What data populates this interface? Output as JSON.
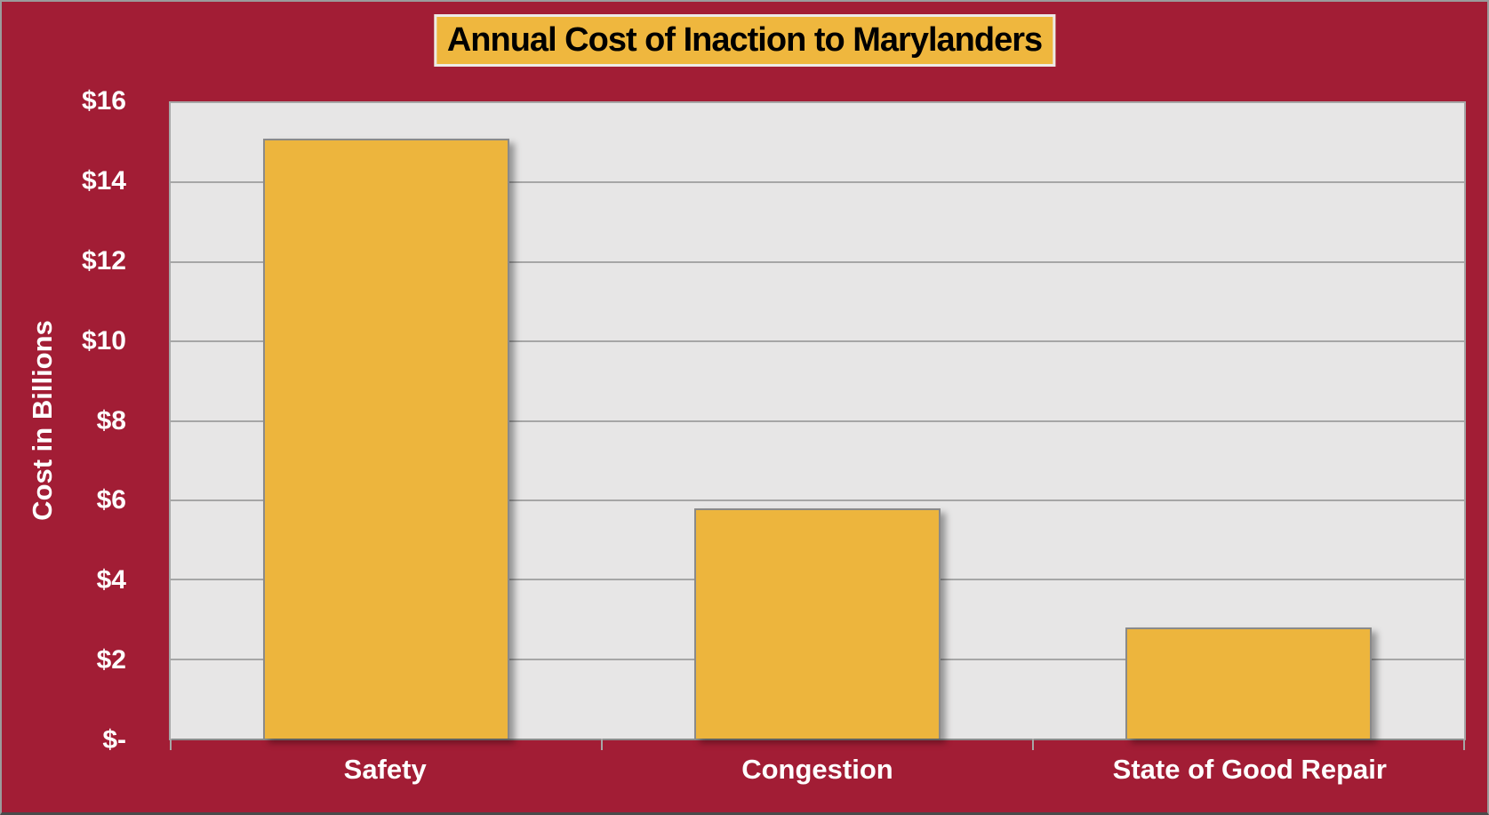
{
  "chart_data": {
    "type": "bar",
    "title": "Annual Cost of Inaction to Marylanders",
    "ylabel": "Cost in Billions",
    "xlabel": "",
    "categories": [
      "Safety",
      "Congestion",
      "State of Good Repair"
    ],
    "values": [
      15.1,
      5.8,
      2.8
    ],
    "value_unit": "billions USD",
    "ylim": [
      0,
      16
    ],
    "ytick_interval": 2,
    "ytick_labels": [
      "$-",
      "$2",
      "$4",
      "$6",
      "$8",
      "$10",
      "$12",
      "$14",
      "$16"
    ],
    "grid": "horizontal",
    "legend": "none",
    "colors": {
      "background": "#A21D35",
      "bar_fill": "#EDB53D",
      "bar_border": "#8A8A8A",
      "plot_background": "#E7E6E6",
      "gridline": "#A6A6A6",
      "title_box_fill": "#EFB73E",
      "title_box_border": "#EDEAE6",
      "title_text": "#000000",
      "axis_text": "#FFFFFF"
    }
  }
}
